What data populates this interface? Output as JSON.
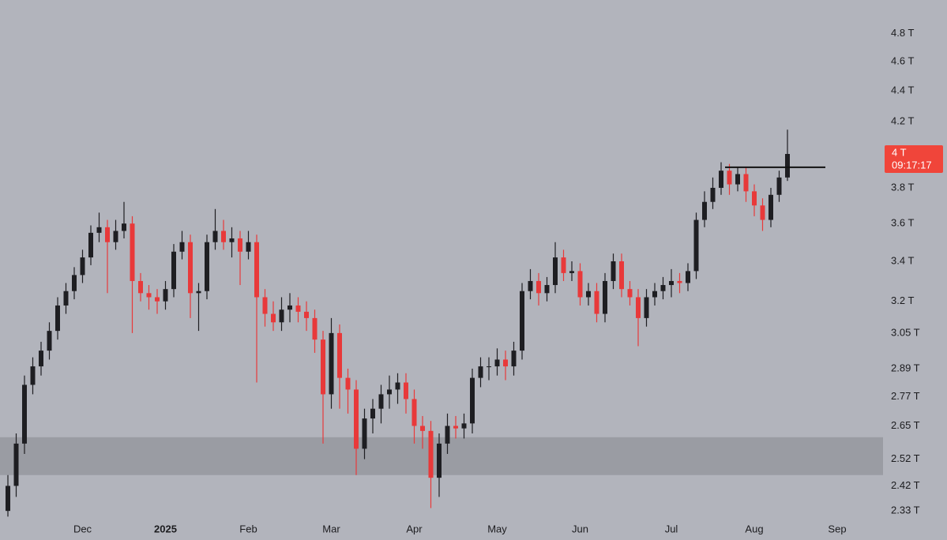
{
  "chart_data": {
    "type": "candlestick",
    "log_scale": true,
    "categories": [
      null,
      null,
      null,
      null,
      null,
      null,
      null,
      null,
      null,
      "Dec",
      null,
      null,
      null,
      null,
      null,
      null,
      null,
      null,
      null,
      "2025",
      null,
      null,
      null,
      null,
      null,
      null,
      null,
      null,
      null,
      "Feb",
      null,
      null,
      null,
      null,
      null,
      null,
      null,
      null,
      null,
      "Mar",
      null,
      null,
      null,
      null,
      null,
      null,
      null,
      null,
      null,
      "Apr",
      null,
      null,
      null,
      null,
      null,
      null,
      null,
      null,
      null,
      "May",
      null,
      null,
      null,
      null,
      null,
      null,
      null,
      null,
      null,
      "Jun",
      null,
      null,
      null,
      null,
      null,
      null,
      null,
      null,
      null,
      null,
      "Jul",
      null,
      null,
      null,
      null,
      null,
      null,
      null,
      null,
      null,
      "Aug",
      null,
      null,
      null,
      null,
      null,
      null,
      null,
      null,
      null,
      "Sep"
    ],
    "open": [
      2.33,
      2.42,
      2.58,
      2.82,
      2.9,
      2.97,
      3.06,
      3.18,
      3.25,
      3.33,
      3.42,
      3.55,
      3.58,
      3.5,
      3.56,
      3.6,
      3.3,
      3.24,
      3.22,
      3.2,
      3.26,
      3.45,
      3.5,
      3.24,
      3.25,
      3.5,
      3.56,
      3.5,
      3.52,
      3.45,
      3.5,
      3.22,
      3.14,
      3.1,
      3.16,
      3.18,
      3.15,
      3.12,
      3.02,
      2.78,
      3.05,
      2.85,
      2.8,
      2.56,
      2.68,
      2.72,
      2.78,
      2.8,
      2.83,
      2.76,
      2.65,
      2.63,
      2.45,
      2.58,
      2.65,
      2.64,
      2.66,
      2.85,
      2.9,
      2.9,
      2.93,
      2.9,
      2.97,
      3.25,
      3.3,
      3.24,
      3.28,
      3.42,
      3.34,
      3.35,
      3.22,
      3.25,
      3.14,
      3.3,
      3.4,
      3.26,
      3.22,
      3.12,
      3.22,
      3.25,
      3.28,
      3.3,
      3.29,
      3.35,
      3.62,
      3.72,
      3.8,
      3.9,
      3.82,
      3.88,
      3.78,
      3.7,
      3.62,
      3.76,
      3.86,
      null,
      null,
      null,
      null,
      null,
      null
    ],
    "high": [
      2.46,
      2.62,
      2.86,
      2.94,
      3.01,
      3.1,
      3.22,
      3.29,
      3.37,
      3.46,
      3.59,
      3.66,
      3.62,
      3.62,
      3.72,
      3.64,
      3.34,
      3.28,
      3.26,
      3.3,
      3.49,
      3.56,
      3.54,
      3.29,
      3.54,
      3.68,
      3.62,
      3.58,
      3.56,
      3.56,
      3.54,
      3.26,
      3.2,
      3.22,
      3.24,
      3.22,
      3.2,
      3.16,
      3.06,
      3.12,
      3.09,
      2.89,
      2.84,
      2.72,
      2.76,
      2.82,
      2.86,
      2.87,
      2.87,
      2.8,
      2.69,
      2.67,
      2.62,
      2.7,
      2.69,
      2.7,
      2.89,
      2.94,
      2.94,
      2.98,
      2.97,
      3.01,
      3.29,
      3.36,
      3.34,
      3.32,
      3.5,
      3.46,
      3.4,
      3.39,
      3.29,
      3.29,
      3.34,
      3.44,
      3.44,
      3.3,
      3.26,
      3.26,
      3.29,
      3.32,
      3.36,
      3.34,
      3.39,
      3.66,
      3.78,
      3.86,
      3.95,
      3.94,
      3.92,
      3.92,
      3.82,
      3.74,
      3.8,
      3.9,
      4.15,
      null,
      null,
      null,
      null,
      null,
      null
    ],
    "low": [
      2.31,
      2.38,
      2.54,
      2.78,
      2.86,
      2.93,
      3.02,
      3.14,
      3.21,
      3.29,
      3.38,
      3.5,
      3.24,
      3.46,
      3.52,
      3.05,
      3.2,
      3.16,
      3.14,
      3.16,
      3.22,
      3.41,
      3.12,
      3.06,
      3.21,
      3.46,
      3.46,
      3.42,
      3.28,
      3.41,
      2.83,
      3.08,
      3.06,
      3.06,
      3.1,
      3.1,
      3.06,
      2.96,
      2.58,
      2.72,
      2.72,
      2.7,
      2.46,
      2.52,
      2.62,
      2.66,
      2.72,
      2.74,
      2.7,
      2.58,
      2.56,
      2.34,
      2.38,
      2.54,
      2.6,
      2.6,
      2.62,
      2.81,
      2.84,
      2.86,
      2.84,
      2.86,
      2.93,
      3.21,
      3.18,
      3.2,
      3.24,
      3.3,
      3.3,
      3.18,
      3.18,
      3.1,
      3.1,
      3.26,
      3.22,
      3.18,
      2.99,
      3.08,
      3.18,
      3.21,
      3.22,
      3.24,
      3.25,
      3.31,
      3.58,
      3.68,
      3.76,
      3.76,
      3.78,
      3.72,
      3.64,
      3.56,
      3.58,
      3.72,
      3.84,
      null,
      null,
      null,
      null,
      null,
      null
    ],
    "close": [
      2.42,
      2.58,
      2.82,
      2.9,
      2.97,
      3.06,
      3.18,
      3.25,
      3.33,
      3.42,
      3.55,
      3.58,
      3.5,
      3.56,
      3.6,
      3.3,
      3.24,
      3.22,
      3.2,
      3.26,
      3.45,
      3.5,
      3.24,
      3.25,
      3.5,
      3.56,
      3.5,
      3.52,
      3.45,
      3.5,
      3.22,
      3.14,
      3.1,
      3.16,
      3.18,
      3.15,
      3.12,
      3.02,
      2.78,
      3.05,
      2.85,
      2.8,
      2.56,
      2.68,
      2.72,
      2.78,
      2.8,
      2.83,
      2.76,
      2.65,
      2.63,
      2.45,
      2.58,
      2.65,
      2.64,
      2.66,
      2.85,
      2.9,
      2.9,
      2.93,
      2.9,
      2.97,
      3.25,
      3.3,
      3.24,
      3.28,
      3.42,
      3.34,
      3.35,
      3.22,
      3.25,
      3.14,
      3.3,
      3.4,
      3.26,
      3.22,
      3.12,
      3.22,
      3.25,
      3.28,
      3.3,
      3.29,
      3.35,
      3.62,
      3.72,
      3.8,
      3.9,
      3.82,
      3.88,
      3.78,
      3.7,
      3.62,
      3.76,
      3.86,
      4.0,
      null,
      null,
      null,
      null,
      null,
      null
    ],
    "up_color": "#1e1e22",
    "down_color": "#e8393a",
    "ylim": [
      2.3,
      5.05
    ],
    "yticks": [
      {
        "value": 2.33,
        "label": "2.33 T"
      },
      {
        "value": 2.42,
        "label": "2.42 T"
      },
      {
        "value": 2.52,
        "label": "2.52 T"
      },
      {
        "value": 2.65,
        "label": "2.65 T"
      },
      {
        "value": 2.77,
        "label": "2.77 T"
      },
      {
        "value": 2.89,
        "label": "2.89 T"
      },
      {
        "value": 3.05,
        "label": "3.05 T"
      },
      {
        "value": 3.2,
        "label": "3.2 T"
      },
      {
        "value": 3.4,
        "label": "3.4 T"
      },
      {
        "value": 3.6,
        "label": "3.6 T"
      },
      {
        "value": 3.8,
        "label": "3.8 T"
      },
      {
        "value": 4.2,
        "label": "4.2 T"
      },
      {
        "value": 4.4,
        "label": "4.4 T"
      },
      {
        "value": 4.6,
        "label": "4.6 T"
      },
      {
        "value": 4.8,
        "label": "4.8 T"
      }
    ],
    "zone": {
      "range": [
        2.46,
        2.605
      ],
      "color": "#9a9ca3"
    },
    "level": {
      "value": 3.92,
      "color": "#111111"
    },
    "last_price": {
      "value": 4,
      "label": "4 T",
      "countdown": "09:17:17",
      "color": "#f0453a"
    },
    "bold_labels": [
      "2025"
    ]
  }
}
